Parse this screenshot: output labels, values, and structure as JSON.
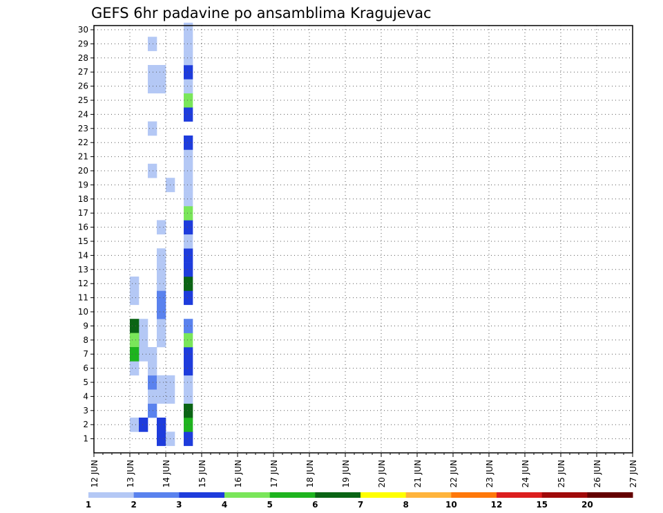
{
  "chart_data": {
    "type": "heatmap",
    "title": "GEFS 6hr padavine po ansamblima Kragujevac",
    "xlabel": "",
    "ylabel": "",
    "x_tick_labels": [
      "12 JUN",
      "13 JUN",
      "14 JUN",
      "15 JUN",
      "16 JUN",
      "17 JUN",
      "18 JUN",
      "19 JUN",
      "20 JUN",
      "21 JUN",
      "22 JUN",
      "23 JUN",
      "24 JUN",
      "25 JUN",
      "26 JUN",
      "27 JUN"
    ],
    "x_range": [
      "12 JUN",
      "27 JUN"
    ],
    "time_step_hours": 6,
    "y_tick_labels": [
      "1",
      "2",
      "3",
      "4",
      "5",
      "6",
      "7",
      "8",
      "9",
      "10",
      "11",
      "12",
      "13",
      "14",
      "15",
      "16",
      "17",
      "18",
      "19",
      "20",
      "21",
      "22",
      "23",
      "24",
      "25",
      "26",
      "27",
      "28",
      "29",
      "30"
    ],
    "y_range": [
      0,
      30
    ],
    "grid": "dotted",
    "legend": {
      "placement": "bottom",
      "labels": [
        "1",
        "2",
        "3",
        "4",
        "5",
        "6",
        "7",
        "8",
        "10",
        "12",
        "15",
        "20"
      ],
      "colors": [
        "#b4c8f5",
        "#5a82ee",
        "#1e3cdc",
        "#7ae65a",
        "#1eb41e",
        "#0a6414",
        "#ffff00",
        "#ffb43c",
        "#ff780a",
        "#dc1e1e",
        "#a00a0a",
        "#640000"
      ]
    },
    "cells": [
      [
        12,
        0,
        0,
        1
      ],
      [
        7,
        1,
        0,
        3
      ],
      [
        7,
        2,
        0,
        3
      ],
      [
        8,
        1,
        0,
        1
      ],
      [
        4,
        2,
        0,
        1
      ],
      [
        5,
        2,
        0,
        3
      ],
      [
        6,
        3,
        0,
        2
      ],
      [
        6,
        4,
        0,
        1
      ],
      [
        7,
        4,
        0,
        1
      ],
      [
        8,
        4,
        0,
        1
      ],
      [
        6,
        5,
        0,
        2
      ],
      [
        7,
        5,
        0,
        1
      ],
      [
        8,
        5,
        0,
        1
      ],
      [
        6,
        6,
        0,
        1
      ],
      [
        6,
        7,
        0,
        1
      ],
      [
        7,
        8,
        0,
        1
      ],
      [
        7,
        9,
        0,
        1
      ],
      [
        7,
        11,
        0,
        2
      ],
      [
        7,
        10,
        0,
        2
      ],
      [
        7,
        12,
        0,
        1
      ],
      [
        7,
        13,
        0,
        1
      ],
      [
        7,
        14,
        0,
        1
      ],
      [
        7,
        16,
        0,
        1
      ],
      [
        6,
        20,
        0,
        1
      ],
      [
        6,
        23,
        0,
        1
      ],
      [
        6,
        26,
        0,
        1
      ],
      [
        7,
        26,
        0,
        1
      ],
      [
        6,
        27,
        0,
        1
      ],
      [
        7,
        27,
        0,
        1
      ],
      [
        6,
        29,
        0,
        1
      ],
      [
        4,
        12,
        0,
        1
      ],
      [
        4,
        11,
        0,
        1
      ],
      [
        4,
        6,
        0,
        1
      ],
      [
        5,
        7,
        0,
        1
      ],
      [
        5,
        8,
        0,
        1
      ],
      [
        5,
        9,
        0,
        1
      ],
      [
        8,
        19,
        0,
        1
      ],
      [
        4,
        8,
        1,
        6
      ],
      [
        4,
        9,
        1,
        6
      ],
      [
        4,
        8,
        1,
        4
      ],
      [
        4,
        7,
        1,
        5
      ],
      [
        10,
        1,
        0,
        3
      ],
      [
        10,
        2,
        0,
        5
      ],
      [
        10,
        3,
        1,
        6
      ],
      [
        10,
        4,
        0,
        1
      ],
      [
        10,
        5,
        0,
        1
      ],
      [
        10,
        6,
        0,
        3
      ],
      [
        10,
        7,
        0,
        3
      ],
      [
        10,
        8,
        1,
        4
      ],
      [
        10,
        9,
        0,
        2
      ],
      [
        10,
        11,
        0,
        3
      ],
      [
        10,
        12,
        1,
        6
      ],
      [
        10,
        13,
        0,
        3
      ],
      [
        10,
        14,
        0,
        3
      ],
      [
        10,
        15,
        0,
        1
      ],
      [
        10,
        16,
        0,
        3
      ],
      [
        10,
        17,
        1,
        4
      ],
      [
        10,
        18,
        0,
        1
      ],
      [
        10,
        19,
        0,
        1
      ],
      [
        10,
        20,
        0,
        1
      ],
      [
        10,
        21,
        0,
        1
      ],
      [
        10,
        22,
        0,
        3
      ],
      [
        10,
        24,
        0,
        3
      ],
      [
        10,
        25,
        1,
        4
      ],
      [
        10,
        26,
        0,
        1
      ],
      [
        10,
        27,
        0,
        3
      ],
      [
        10,
        28,
        0,
        1
      ],
      [
        10,
        29,
        0,
        1
      ],
      [
        10,
        30,
        1,
        1
      ]
    ],
    "note_cells_format": "[column, member, unused, level]"
  },
  "icons": {}
}
